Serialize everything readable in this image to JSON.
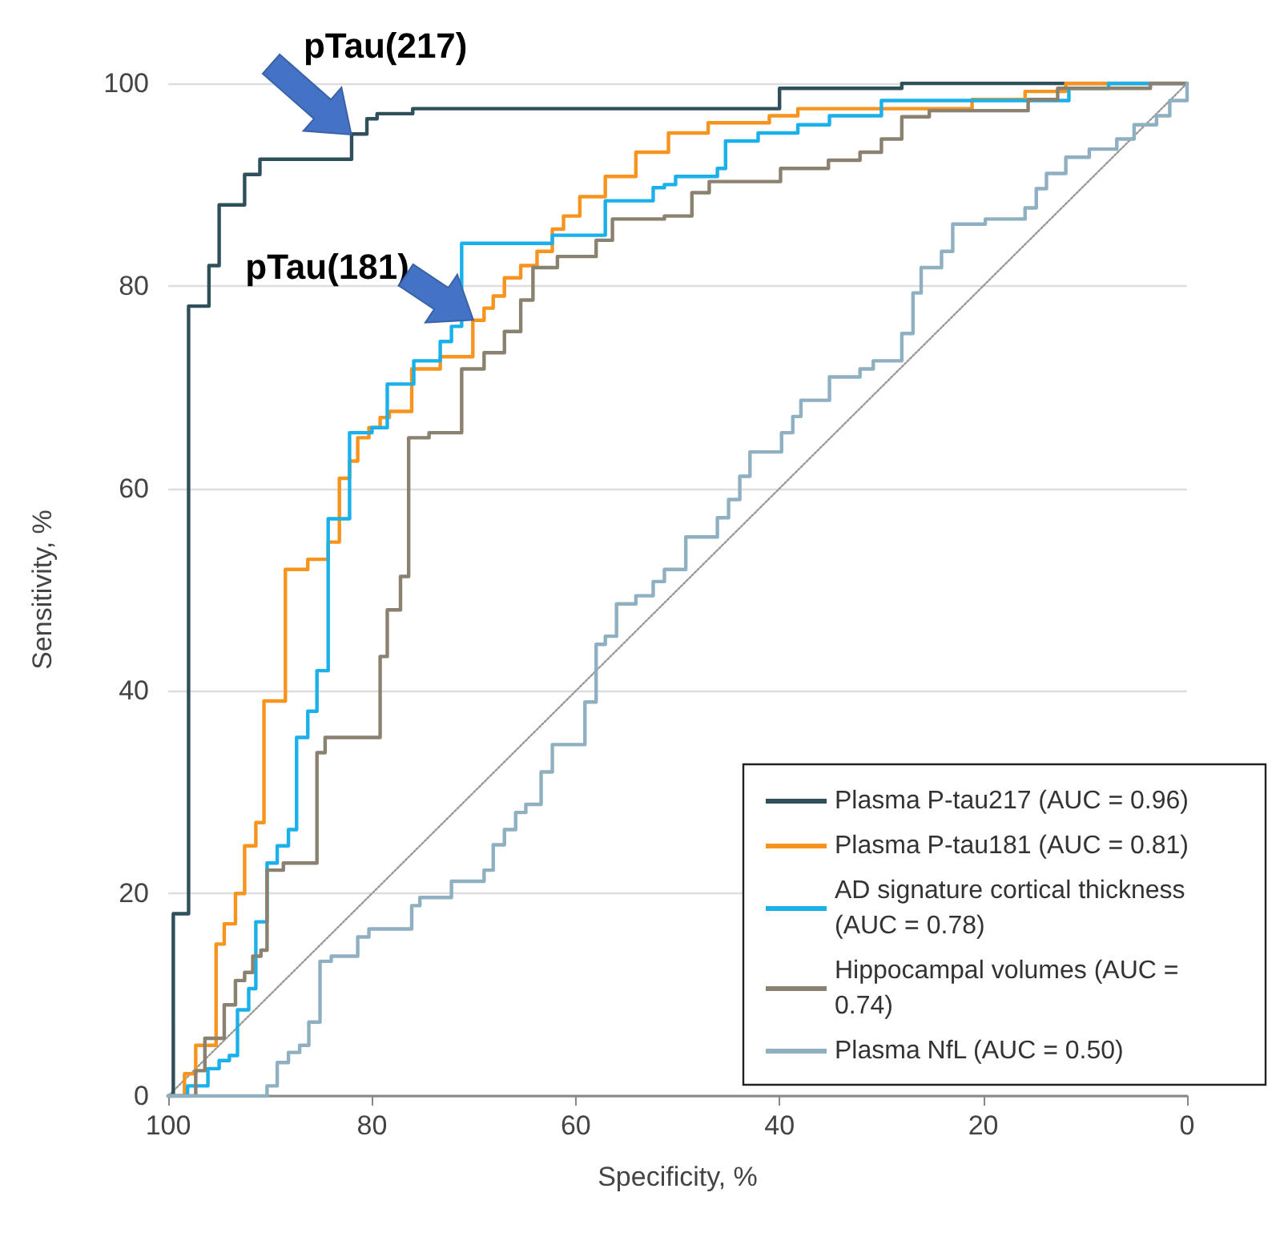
{
  "chart_data": {
    "type": "step",
    "xlabel": "Specificity, %",
    "ylabel": "Sensitivity, %",
    "xlim": [
      100,
      0
    ],
    "xticks": [
      100,
      80,
      60,
      40,
      20,
      0
    ],
    "ylim": [
      0,
      100
    ],
    "yticks": [
      0,
      20,
      40,
      60,
      80,
      100
    ],
    "grid": "y",
    "legend": "bottom right",
    "marker": "none",
    "annotations": [
      {
        "text": "pTau(217)",
        "x": 82,
        "y": 95
      },
      {
        "text": "pTau(181)",
        "x": 70.1,
        "y": 76.6
      }
    ],
    "series": [
      {
        "name": "Plasma P-tau217 (AUC = 0.96)",
        "color": "#2f4f5a",
        "x": [
          100,
          99.5,
          98,
          98,
          96,
          95,
          92.5,
          91,
          82,
          80.5,
          79.5,
          76,
          40,
          28,
          0
        ],
        "values": [
          0,
          18,
          62,
          78,
          82,
          88,
          91,
          92.5,
          95,
          96.5,
          97,
          97.5,
          99.5,
          100,
          100
        ]
      },
      {
        "name": "Plasma P-tau181 (AUC = 0.81)",
        "color": "#f7941d",
        "x": [
          100,
          99.2,
          98.4,
          97.3,
          95.3,
          94.5,
          93.4,
          92.5,
          91.4,
          90.6,
          88.5,
          86.3,
          84.3,
          83.2,
          82.2,
          81.4,
          80.3,
          79.2,
          78.3,
          76.1,
          73.3,
          70.1,
          69,
          68.1,
          67,
          65.4,
          63.8,
          62.3,
          61.2,
          59.6,
          57.1,
          54.1,
          50.9,
          47,
          41,
          38.2,
          21.1,
          15.9,
          11.9,
          0
        ],
        "values": [
          0,
          0,
          2.2,
          5,
          15,
          17,
          20,
          24.7,
          27,
          39,
          52,
          53,
          54.7,
          61,
          62.7,
          65,
          66,
          67,
          67.6,
          71.8,
          73,
          76.6,
          77.8,
          79,
          80.8,
          82,
          83.4,
          85.6,
          86.9,
          88.8,
          90.8,
          93.2,
          95.1,
          96.1,
          96.8,
          97.5,
          98.4,
          99.2,
          100,
          100
        ]
      },
      {
        "name": "AD signature cortical thickness (AUC = 0.78)",
        "color": "#1ab0ea",
        "x": [
          100,
          99.2,
          98.1,
          96.1,
          95,
          94,
          93.2,
          92.1,
          91.4,
          90.3,
          89.3,
          88.2,
          87.4,
          86.3,
          85.4,
          84.3,
          82.2,
          80,
          78.5,
          75.9,
          73.3,
          72.2,
          71.2,
          62.3,
          57.1,
          52.4,
          51.3,
          50.2,
          46.1,
          45.3,
          42.1,
          38.2,
          35.1,
          30,
          11.6,
          7.7,
          0
        ],
        "values": [
          0,
          0,
          1,
          2.7,
          3.5,
          4,
          8.5,
          10.6,
          17.2,
          23,
          24.7,
          26.3,
          35.4,
          38,
          42,
          57,
          65.5,
          66,
          70.3,
          72.6,
          74.5,
          76,
          84.2,
          85,
          88.4,
          89.7,
          90,
          90.8,
          91.6,
          94.3,
          95.1,
          95.9,
          96.8,
          98.3,
          99.5,
          100,
          100
        ]
      },
      {
        "name": "Hippocampal volumes (AUC = 0.74)",
        "color": "#8b8170",
        "x": [
          100,
          97.3,
          96.4,
          94.5,
          93.4,
          92.5,
          91.7,
          90.9,
          90.3,
          88.7,
          85.4,
          84.6,
          79.2,
          78.5,
          77.2,
          76.4,
          74.4,
          71.2,
          69,
          67,
          65.4,
          64.2,
          61.8,
          58,
          56.4,
          51.3,
          48.6,
          46.9,
          39.9,
          35.2,
          32.1,
          30,
          28,
          25.3,
          15.6,
          12.7,
          3.6,
          0
        ],
        "values": [
          0,
          2.5,
          5.7,
          9,
          11.4,
          12.2,
          13.8,
          14.4,
          22.3,
          23,
          33.9,
          35.4,
          43.4,
          48,
          51.3,
          65,
          65.5,
          71.8,
          73.4,
          75.5,
          78.6,
          81.8,
          82.9,
          84.5,
          86.6,
          86.9,
          89.2,
          90.3,
          91.6,
          92.4,
          93.2,
          94.5,
          96.7,
          97.3,
          98.4,
          99.5,
          100,
          100
        ]
      },
      {
        "name": "Plasma NfL (AUC = 0.50)",
        "color": "#8fb0c0",
        "x": [
          100,
          90.3,
          89.3,
          88.2,
          87.1,
          86.2,
          85.1,
          84,
          81.4,
          80.3,
          76.1,
          75.3,
          72.2,
          69,
          68.1,
          67,
          65.9,
          64.9,
          63.4,
          62.3,
          59.1,
          58,
          57.1,
          56,
          54.1,
          52.4,
          51.3,
          49.2,
          46.1,
          45,
          43.9,
          42.9,
          39.8,
          38.7,
          37.9,
          35.1,
          32.1,
          30.8,
          28,
          26.9,
          26.1,
          24.1,
          23,
          19.8,
          15.9,
          14.8,
          13.8,
          11.9,
          9.6,
          6.9,
          5.2,
          3,
          1.7,
          0
        ],
        "values": [
          0,
          1,
          3.3,
          4.3,
          5,
          7.3,
          13.3,
          13.8,
          15.7,
          16.5,
          18.8,
          19.6,
          21.2,
          22.3,
          24.8,
          26.3,
          28,
          28.8,
          32,
          34.7,
          38.9,
          44.6,
          45.4,
          48.6,
          49.4,
          50.8,
          52,
          55.2,
          57.1,
          58.9,
          61.2,
          63.6,
          65.5,
          67.1,
          68.7,
          71,
          71.8,
          72.6,
          75.3,
          79.3,
          81.8,
          83.4,
          86.1,
          86.6,
          87.7,
          89.6,
          91.1,
          92.7,
          93.5,
          94.5,
          95.9,
          96.8,
          98.3,
          100
        ]
      },
      {
        "type": "line",
        "color": "#999999",
        "line_style": "dotted",
        "x": [
          100,
          0
        ],
        "values": [
          0,
          100
        ]
      }
    ]
  }
}
